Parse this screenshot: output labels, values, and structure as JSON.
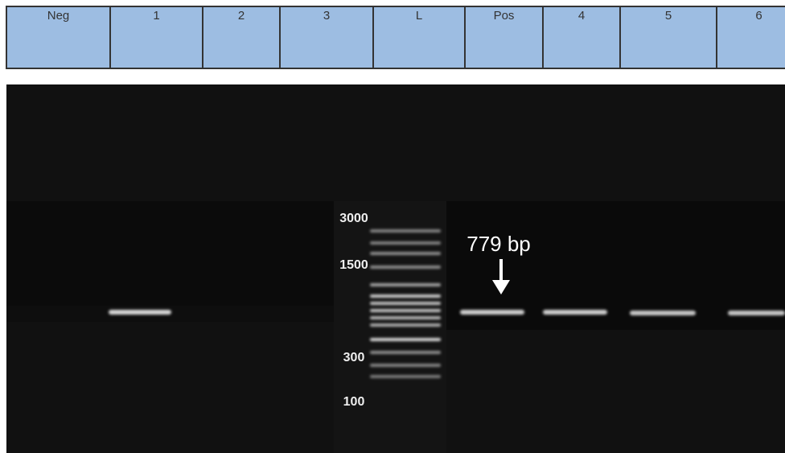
{
  "lanes": [
    "Neg",
    "1",
    "2",
    "3",
    "L",
    "Pos",
    "4",
    "5",
    "6"
  ],
  "ladder_labels": [
    3000,
    1500,
    300,
    100
  ],
  "annotation": "779 bp"
}
